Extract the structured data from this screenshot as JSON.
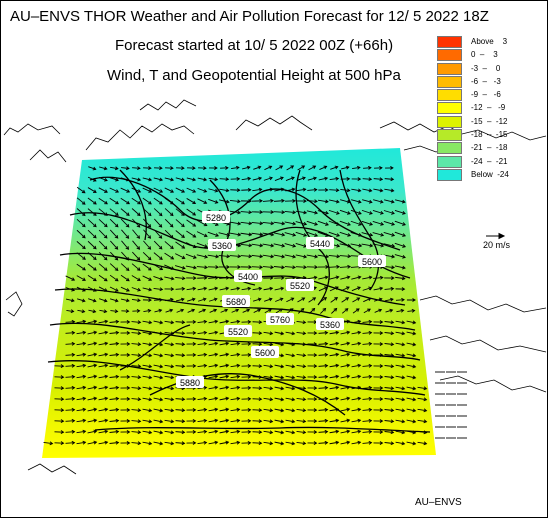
{
  "header": {
    "title": "AU–ENVS THOR Weather and Air Pollution Forecast for 12/ 5 2022  18Z",
    "forecast_start": "Forecast started at 10/ 5 2022  00Z (+66h)",
    "field": "Wind, T and Geopotential Height at 500 hPa"
  },
  "legend": {
    "items": [
      {
        "label": "Above    3",
        "color": "#ff3300"
      },
      {
        "label": "0  –    3",
        "color": "#ff6a00"
      },
      {
        "label": "-3  –    0",
        "color": "#ff9a00"
      },
      {
        "label": "-6  –   -3",
        "color": "#ffbb00"
      },
      {
        "label": "-9  –   -6",
        "color": "#ffdd00"
      },
      {
        "label": "-12  –   -9",
        "color": "#ffff00"
      },
      {
        "label": "-15  –  -12",
        "color": "#ddf200"
      },
      {
        "label": "-18  –  -15",
        "color": "#b6ea28"
      },
      {
        "label": "-21  –  -18",
        "color": "#88e864"
      },
      {
        "label": "-24  –  -21",
        "color": "#5ce8a8"
      },
      {
        "label": "Below  -24",
        "color": "#20e8da"
      }
    ]
  },
  "wind_scale": {
    "label": "20 m/s"
  },
  "contours": {
    "labels": [
      "5280",
      "5360",
      "5400",
      "5440",
      "5520",
      "5600",
      "5680",
      "5760",
      "5360",
      "5520",
      "5600",
      "5880"
    ]
  },
  "footer": {
    "logo": "AU–ENVS"
  }
}
